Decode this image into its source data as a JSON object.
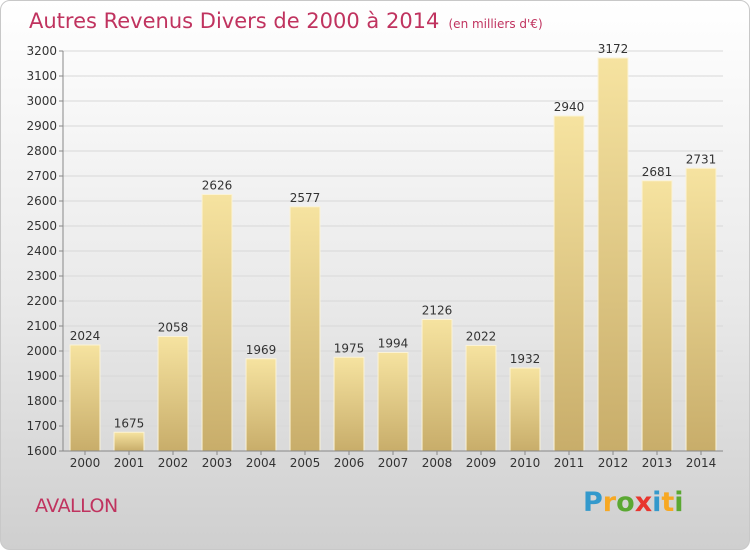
{
  "title": "Autres Revenus Divers de 2000 à 2014",
  "subtitle": "(en milliers d'€)",
  "city": "AVALLON",
  "logo": {
    "chars": [
      "P",
      "r",
      "o",
      "x",
      "i",
      "t",
      "i"
    ],
    "colors": [
      "#3399cc",
      "#f7a823",
      "#5aa832",
      "#e8352e",
      "#3399cc",
      "#f7a823",
      "#5aa832"
    ]
  },
  "colors": {
    "accent": "#c0335f",
    "bar_light": "#f6e3a0",
    "bar_dark": "#c8ad6a"
  },
  "chart_data": {
    "type": "bar",
    "categories": [
      "2000",
      "2001",
      "2002",
      "2003",
      "2004",
      "2005",
      "2006",
      "2007",
      "2008",
      "2009",
      "2010",
      "2011",
      "2012",
      "2013",
      "2014"
    ],
    "values": [
      2024,
      1675,
      2058,
      2626,
      1969,
      2577,
      1975,
      1994,
      2126,
      2022,
      1932,
      2940,
      3172,
      2681,
      2731
    ],
    "ylim": [
      1600,
      3200
    ],
    "yticks": [
      1600,
      1700,
      1800,
      1900,
      2000,
      2100,
      2200,
      2300,
      2400,
      2500,
      2600,
      2700,
      2800,
      2900,
      3000,
      3100,
      3200
    ],
    "grid": true,
    "xlabel": "",
    "ylabel": ""
  }
}
